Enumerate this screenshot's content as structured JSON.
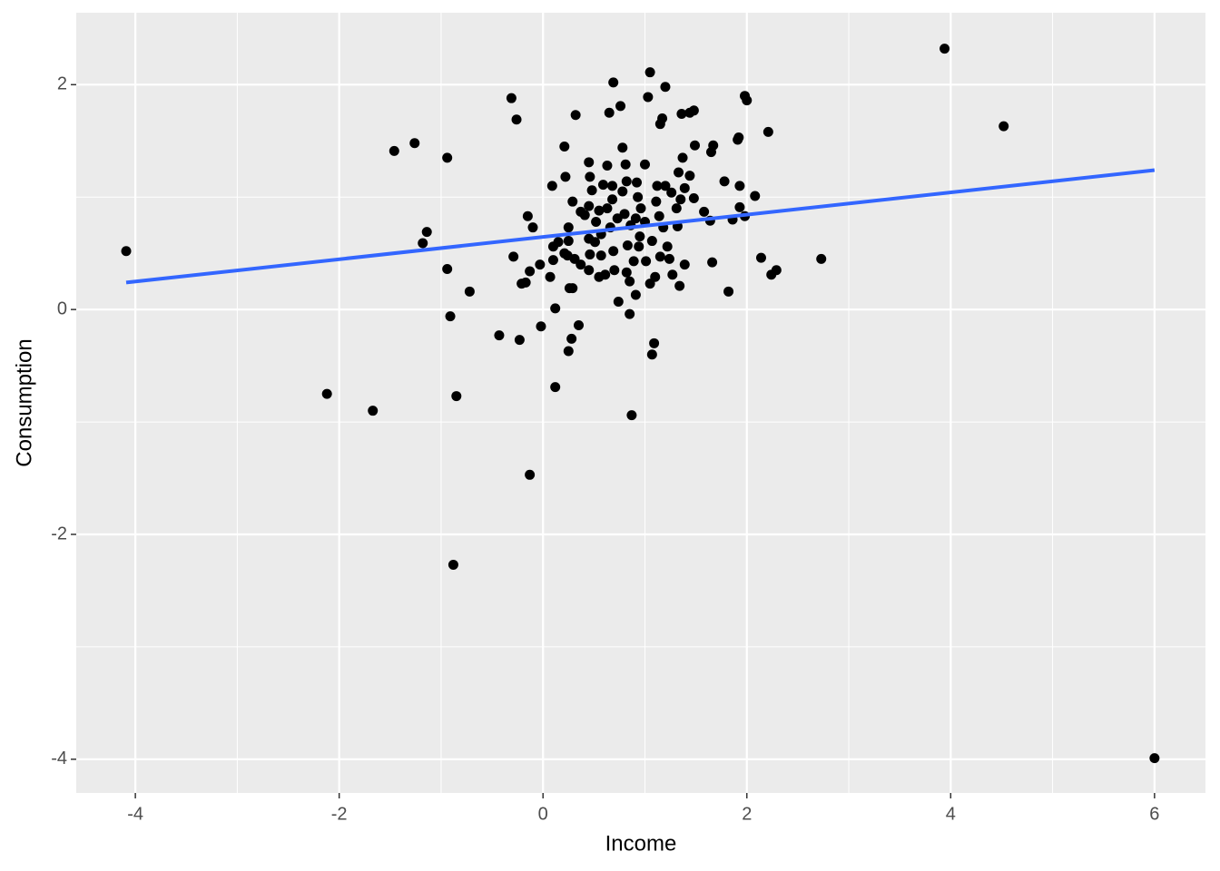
{
  "chart_data": {
    "type": "scatter",
    "x_label": "Income",
    "y_label": "Consumption",
    "xlim": [
      -4.58,
      6.5
    ],
    "ylim": [
      -4.3,
      2.64
    ],
    "xticks": [
      -4,
      -2,
      0,
      2,
      4,
      6
    ],
    "yticks": [
      -4,
      -2,
      0,
      2
    ],
    "grid": true,
    "minor_grid": true,
    "background": "#EBEBEB",
    "color": "#000000",
    "x": [
      -4.09,
      -2.12,
      -1.67,
      -0.88,
      -0.85,
      -0.13,
      0.87,
      3.94,
      4.52,
      6.0,
      2.73,
      -1.46,
      -1.26,
      -0.94,
      -1.18,
      -1.14,
      -0.94,
      -0.91,
      -0.72,
      -0.43,
      -0.31,
      -0.26,
      -0.23,
      -0.15,
      -0.1,
      -0.29,
      -0.21,
      -0.17,
      -0.13,
      -0.03,
      -0.02,
      0.09,
      0.1,
      0.1,
      0.07,
      0.12,
      0.12,
      0.21,
      0.22,
      0.25,
      0.25,
      0.24,
      0.26,
      0.25,
      0.28,
      0.29,
      0.32,
      0.35,
      0.29,
      0.31,
      0.37,
      0.37,
      0.45,
      0.45,
      0.45,
      0.46,
      0.48,
      0.45,
      0.52,
      0.57,
      0.57,
      0.59,
      0.61,
      0.63,
      0.65,
      0.68,
      0.68,
      0.69,
      0.7,
      0.69,
      0.74,
      0.76,
      0.78,
      0.78,
      0.8,
      0.81,
      0.83,
      0.85,
      0.85,
      0.89,
      0.91,
      0.92,
      0.93,
      0.94,
      0.96,
      1.0,
      1.0,
      1.01,
      1.03,
      1.05,
      1.05,
      1.07,
      1.09,
      1.07,
      1.1,
      1.11,
      1.12,
      1.14,
      1.15,
      1.15,
      1.17,
      1.2,
      1.2,
      1.22,
      1.24,
      1.27,
      1.31,
      1.33,
      1.32,
      1.35,
      1.36,
      1.37,
      1.39,
      1.34,
      1.39,
      1.44,
      1.48,
      1.44,
      1.49,
      1.58,
      1.64,
      1.66,
      1.67,
      1.65,
      1.78,
      1.82,
      1.86,
      1.91,
      1.92,
      1.93,
      1.93,
      1.98,
      2.0,
      1.98,
      2.08,
      2.14,
      2.21,
      2.24,
      2.29,
      0.21,
      0.15,
      0.41,
      0.51,
      0.55,
      0.66,
      0.73,
      0.86,
      0.95,
      0.82,
      0.55,
      0.91,
      1.18,
      1.26,
      1.48,
      0.82,
      0.63,
      0.46
    ],
    "y": [
      0.52,
      -0.75,
      -0.9,
      -2.27,
      -0.77,
      -1.47,
      -0.94,
      2.32,
      1.63,
      -3.99,
      0.45,
      1.41,
      1.48,
      1.35,
      0.59,
      0.69,
      0.36,
      -0.06,
      0.16,
      -0.23,
      1.88,
      1.69,
      -0.27,
      0.83,
      0.73,
      0.47,
      0.23,
      0.24,
      0.34,
      0.4,
      -0.15,
      1.1,
      0.56,
      0.44,
      0.29,
      0.01,
      -0.69,
      1.45,
      1.18,
      0.73,
      0.61,
      0.48,
      0.19,
      -0.37,
      -0.26,
      0.96,
      1.73,
      -0.14,
      0.19,
      0.45,
      0.4,
      0.87,
      0.92,
      0.63,
      1.31,
      1.18,
      1.06,
      0.35,
      0.78,
      0.67,
      0.48,
      1.11,
      0.31,
      1.28,
      1.75,
      1.1,
      0.98,
      2.02,
      0.35,
      0.52,
      0.07,
      1.81,
      1.44,
      1.05,
      0.85,
      1.29,
      0.57,
      -0.04,
      0.25,
      0.43,
      0.13,
      1.13,
      1.0,
      0.56,
      0.9,
      1.29,
      0.78,
      0.43,
      1.89,
      2.11,
      0.23,
      0.61,
      -0.3,
      -0.4,
      0.29,
      0.96,
      1.1,
      0.83,
      0.47,
      1.65,
      1.7,
      1.98,
      1.1,
      0.56,
      0.45,
      0.31,
      0.9,
      1.22,
      0.74,
      0.98,
      1.74,
      1.35,
      0.4,
      0.21,
      1.08,
      1.75,
      1.77,
      1.19,
      1.46,
      0.87,
      0.79,
      0.42,
      1.46,
      1.4,
      1.14,
      0.16,
      0.8,
      1.51,
      1.53,
      1.1,
      0.91,
      1.9,
      1.86,
      0.83,
      1.01,
      0.46,
      1.58,
      0.31,
      0.35,
      0.5,
      0.6,
      0.84,
      0.6,
      0.88,
      0.73,
      0.81,
      0.75,
      0.65,
      0.33,
      0.29,
      0.81,
      0.73,
      1.04,
      0.99,
      1.14,
      0.9,
      0.49
    ],
    "fit": {
      "color": "#3366FF",
      "x": [
        -4.09,
        6.0
      ],
      "y": [
        0.24,
        1.24
      ]
    }
  }
}
